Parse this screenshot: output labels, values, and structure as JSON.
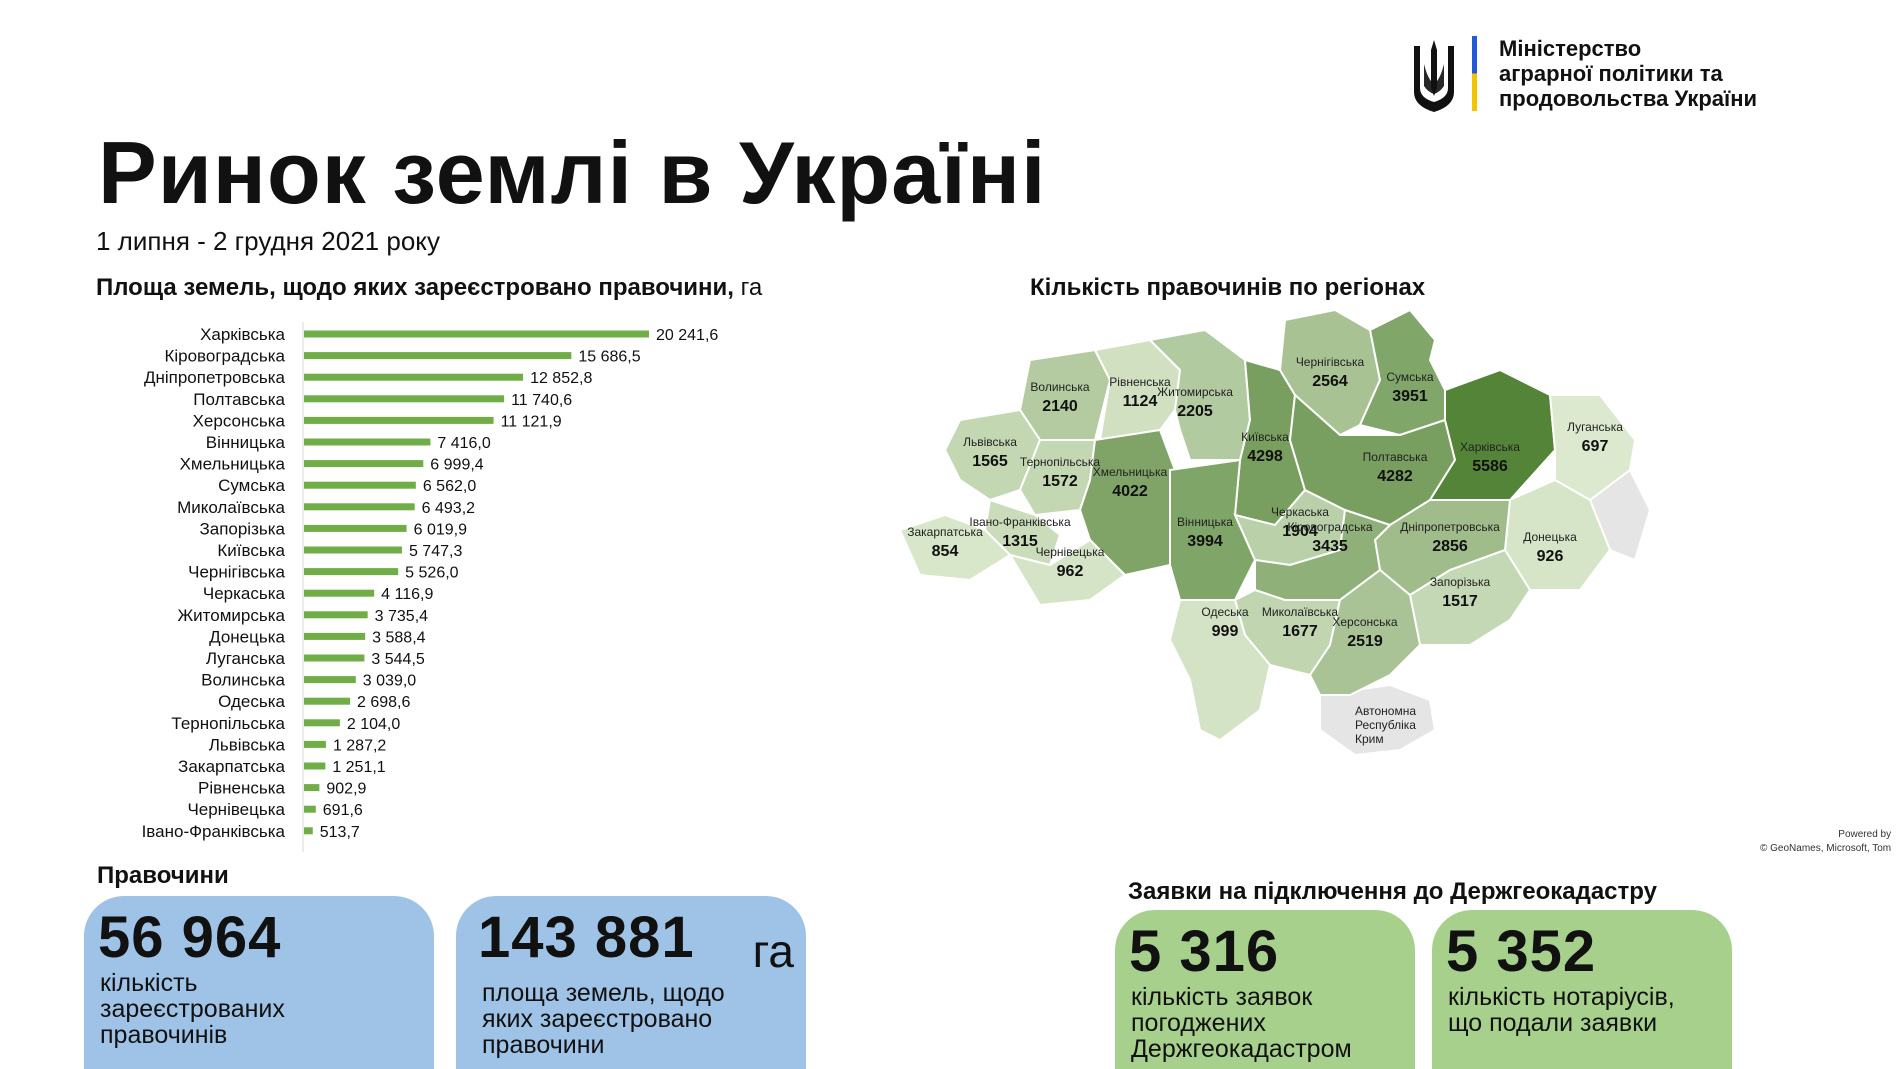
{
  "header": {
    "title": "Ринок землі в Україні",
    "subtitle": "1 липня - 2 грудня 2021 року",
    "ministry": [
      "Міністерство",
      "аграрної політики та",
      "продовольства України"
    ]
  },
  "colors": {
    "bar": "#70ad47",
    "card_blue": "#9fc3e7",
    "card_green": "#a8d08d",
    "flag_blue": "#1f5bd6",
    "flag_yellow": "#f5c400"
  },
  "bar_chart_title": {
    "main": "Площа земель, щодо яких зареєстровано правочини,",
    "unit": "га"
  },
  "chart_data": [
    {
      "type": "bar",
      "orientation": "horizontal",
      "categories": [
        "Харківська",
        "Кіровоградська",
        "Дніпропетровська",
        "Полтавська",
        "Херсонська",
        "Вінницька",
        "Хмельницька",
        "Сумська",
        "Миколаївська",
        "Запорізька",
        "Київська",
        "Чернігівська",
        "Черкаська",
        "Житомирська",
        "Донецька",
        "Луганська",
        "Волинська",
        "Одеська",
        "Тернопільська",
        "Львівська",
        "Закарпатська",
        "Рівненська",
        "Чернівецька",
        "Івано-Франківська"
      ],
      "values": [
        20241.6,
        15686.5,
        12852.8,
        11740.6,
        11121.9,
        7416.0,
        6999.4,
        6562.0,
        6493.2,
        6019.9,
        5747.3,
        5526.0,
        4116.9,
        3735.4,
        3588.4,
        3544.5,
        3039.0,
        2698.6,
        2104.0,
        1287.2,
        1251.1,
        902.9,
        691.6,
        513.7
      ],
      "labels": [
        "20 241,6",
        "15 686,5",
        "12 852,8",
        "11 740,6",
        "11 121,9",
        "7 416,0",
        "6 999,4",
        "6 562,0",
        "6 493,2",
        "6 019,9",
        "5 747,3",
        "5 526,0",
        "4 116,9",
        "3 735,4",
        "3 588,4",
        "3 544,5",
        "3 039,0",
        "2 698,6",
        "2 104,0",
        "1 287,2",
        "1 251,1",
        "902,9",
        "691,6",
        "513,7"
      ],
      "title": "Площа земель, щодо яких зареєстровано правочини, га"
    },
    {
      "type": "choropleth",
      "title": "Кількість правочинів по регіонах",
      "regions": [
        {
          "name": "Волинська",
          "value": 2140
        },
        {
          "name": "Рівненська",
          "value": 1124
        },
        {
          "name": "Житомирська",
          "value": 2205
        },
        {
          "name": "Київська",
          "value": 4298
        },
        {
          "name": "Чернігівська",
          "value": 2564
        },
        {
          "name": "Сумська",
          "value": 3951
        },
        {
          "name": "Львівська",
          "value": 1565
        },
        {
          "name": "Тернопільська",
          "value": 1572
        },
        {
          "name": "Хмельницька",
          "value": 4022
        },
        {
          "name": "Івано-Франківська",
          "value": 1315
        },
        {
          "name": "Закарпатська",
          "value": 854
        },
        {
          "name": "Чернівецька",
          "value": 962
        },
        {
          "name": "Вінницька",
          "value": 3994
        },
        {
          "name": "Черкаська",
          "value": 1904
        },
        {
          "name": "Полтавська",
          "value": 4282
        },
        {
          "name": "Харківська",
          "value": 5586
        },
        {
          "name": "Луганська",
          "value": 697
        },
        {
          "name": "Донецька",
          "value": 926
        },
        {
          "name": "Дніпропетровська",
          "value": 2856
        },
        {
          "name": "Кіровоградська",
          "value": 3435
        },
        {
          "name": "Миколаївська",
          "value": 1677
        },
        {
          "name": "Одеська",
          "value": 999
        },
        {
          "name": "Запорізька",
          "value": 1517
        },
        {
          "name": "Херсонська",
          "value": 2519
        }
      ],
      "crimea_label": [
        "Автономна",
        "Республіка",
        "Крим"
      ]
    }
  ],
  "map": {
    "powered_by": "Powered by",
    "attribution": "© GeoNames, Microsoft, Tom"
  },
  "deals": {
    "label": "Правочини",
    "count": {
      "value": "56 964",
      "desc": [
        "кількість",
        "зареєстрованих",
        "правочинів"
      ]
    },
    "area": {
      "value": "143 881",
      "unit": "га",
      "desc": [
        "площа земель, щодо",
        "яких зареєстровано",
        "правочини"
      ]
    }
  },
  "applications": {
    "label": "Заявки на підключення до Держгеокадастру",
    "approved": {
      "value": "5 316",
      "desc": [
        "кількість заявок",
        "погоджених",
        "Держгеокадастром"
      ]
    },
    "notaries": {
      "value": "5 352",
      "desc": [
        "кількість нотаріусів,",
        "що подали заявки"
      ]
    }
  }
}
